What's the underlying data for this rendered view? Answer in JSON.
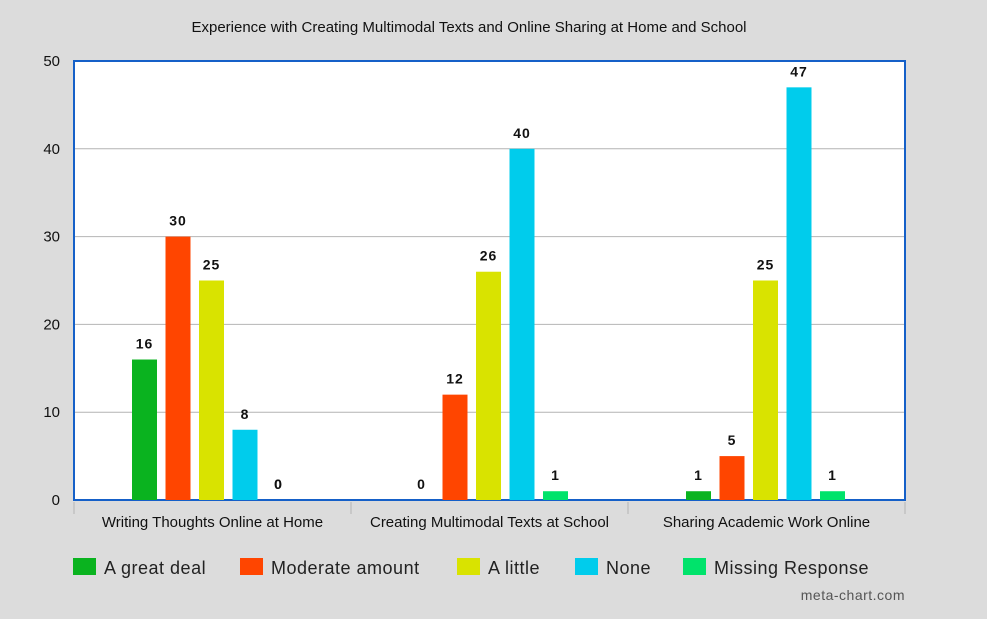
{
  "chart_data": {
    "type": "bar",
    "title": "Experience with Creating Multimodal Texts and Online Sharing at Home and School",
    "categories": [
      "Writing Thoughts Online at Home",
      "Creating Multimodal Texts at School",
      "Sharing Academic Work Online"
    ],
    "series": [
      {
        "name": "A great deal",
        "color": "#0ab31f",
        "values": [
          16,
          null,
          1
        ]
      },
      {
        "name": "Moderate amount",
        "color": "#ff4500",
        "values": [
          30,
          12,
          5
        ]
      },
      {
        "name": "A little",
        "color": "#d9e300",
        "values": [
          25,
          26,
          25
        ]
      },
      {
        "name": "None",
        "color": "#00ccec",
        "values": [
          8,
          40,
          47
        ]
      },
      {
        "name": "Missing Response",
        "color": "#00e36b",
        "values": [
          0,
          1,
          1
        ]
      }
    ],
    "zero_labels": [
      {
        "category": 0,
        "series": 4,
        "text": "0"
      },
      {
        "category": 1,
        "series": 0,
        "text": "0"
      }
    ],
    "ylim": [
      0,
      50
    ],
    "yticks": [
      0,
      10,
      20,
      30,
      40,
      50
    ],
    "grid": true,
    "legend_position": "bottom",
    "plot_border_color": "#1560c8"
  },
  "credit": "meta-chart.com"
}
